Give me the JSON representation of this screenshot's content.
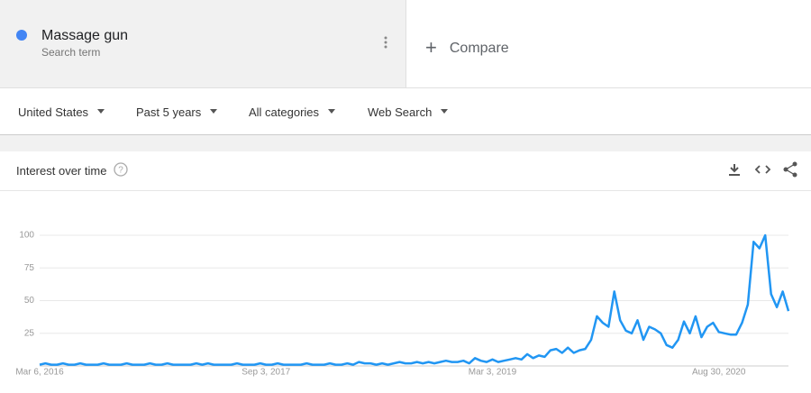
{
  "search_term": {
    "label": "Massage gun",
    "sublabel": "Search term",
    "color": "#4285f4"
  },
  "compare": "Compare",
  "filters": [
    "United States",
    "Past 5 years",
    "All categories",
    "Web Search"
  ],
  "card": {
    "title": "Interest over time"
  },
  "chart_data": {
    "type": "line",
    "color": "#2196f3",
    "grid": true,
    "ylim": [
      0,
      100
    ],
    "yticks": [
      25,
      50,
      75,
      100
    ],
    "categories": [
      "Mar 6, 2016",
      null,
      null,
      null,
      null,
      null,
      null,
      null,
      null,
      null,
      null,
      null,
      null,
      null,
      null,
      null,
      null,
      null,
      null,
      null,
      null,
      null,
      null,
      null,
      null,
      null,
      null,
      null,
      null,
      null,
      null,
      null,
      null,
      null,
      null,
      null,
      null,
      null,
      null,
      "Sep 3, 2017",
      null,
      null,
      null,
      null,
      null,
      null,
      null,
      null,
      null,
      null,
      null,
      null,
      null,
      null,
      null,
      null,
      null,
      null,
      null,
      null,
      null,
      null,
      null,
      null,
      null,
      null,
      null,
      null,
      null,
      null,
      null,
      null,
      null,
      null,
      null,
      null,
      null,
      null,
      "Mar 3, 2019",
      null,
      null,
      null,
      null,
      null,
      null,
      null,
      null,
      null,
      null,
      null,
      null,
      null,
      null,
      null,
      null,
      null,
      null,
      null,
      null,
      null,
      null,
      null,
      null,
      null,
      null,
      null,
      null,
      null,
      null,
      null,
      null,
      null,
      null,
      null,
      null,
      null,
      null,
      "Aug 30, 2020",
      null,
      null,
      null,
      null,
      null,
      null,
      null,
      null,
      null,
      null,
      null,
      null
    ],
    "values": [
      1,
      2,
      1,
      1,
      2,
      1,
      1,
      2,
      1,
      1,
      1,
      2,
      1,
      1,
      1,
      2,
      1,
      1,
      1,
      2,
      1,
      1,
      2,
      1,
      1,
      1,
      1,
      2,
      1,
      2,
      1,
      1,
      1,
      1,
      2,
      1,
      1,
      1,
      2,
      1,
      1,
      2,
      1,
      1,
      1,
      1,
      2,
      1,
      1,
      1,
      2,
      1,
      1,
      2,
      1,
      3,
      2,
      2,
      1,
      2,
      1,
      2,
      3,
      2,
      2,
      3,
      2,
      3,
      2,
      3,
      4,
      3,
      3,
      4,
      2,
      6,
      4,
      3,
      5,
      3,
      4,
      5,
      6,
      5,
      9,
      6,
      8,
      7,
      12,
      13,
      10,
      14,
      10,
      12,
      13,
      20,
      38,
      33,
      30,
      57,
      35,
      27,
      25,
      35,
      20,
      30,
      28,
      25,
      16,
      14,
      20,
      34,
      25,
      38,
      22,
      30,
      33,
      26,
      25,
      24,
      24,
      33,
      47,
      95,
      90,
      100,
      55,
      45,
      57,
      42
    ]
  }
}
